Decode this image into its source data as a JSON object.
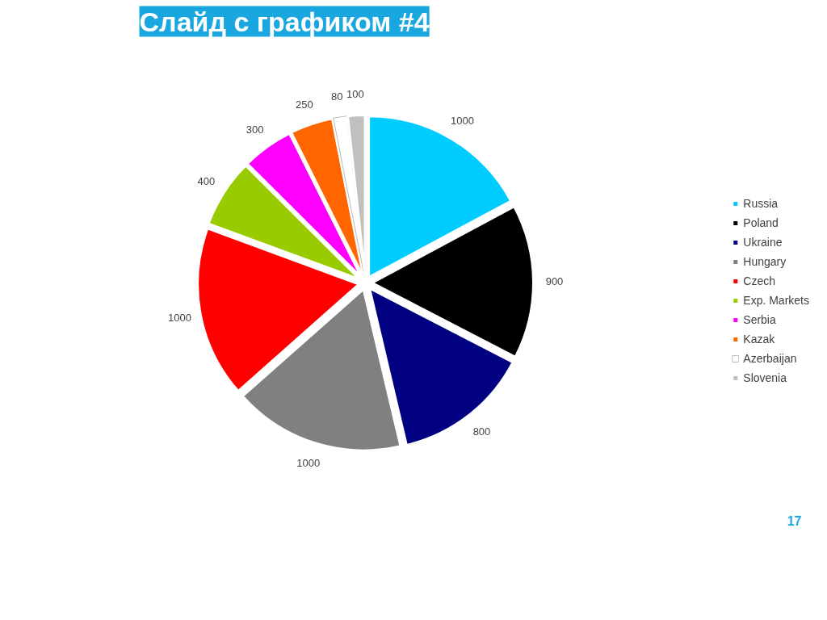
{
  "chart_data": {
    "type": "pie",
    "title": "Слайд с графиком #4",
    "categories": [
      "Russia",
      "Poland",
      "Ukraine",
      "Hungary",
      "Czech",
      "Exp. Markets",
      "Serbia",
      "Kazak",
      "Azerbaijan",
      "Slovenia"
    ],
    "values": [
      1000,
      900,
      800,
      1000,
      1000,
      400,
      300,
      250,
      80,
      100
    ],
    "colors": [
      "#00ccff",
      "#000000",
      "#000080",
      "#808080",
      "#ff0000",
      "#99cc00",
      "#ff00ff",
      "#ff6600",
      "#ffffff",
      "#c0c0c0"
    ],
    "data_labels": true,
    "legend": "right",
    "annotations": [
      "17"
    ]
  }
}
